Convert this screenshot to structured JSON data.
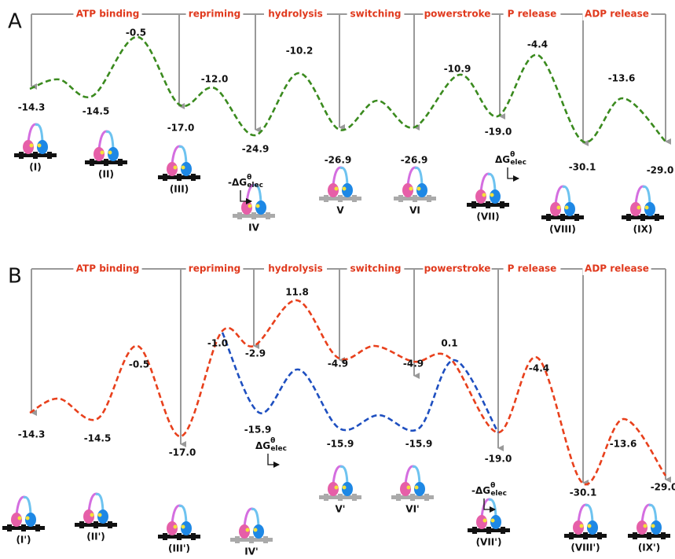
{
  "panels": [
    {
      "label": "A",
      "steps": [
        "ATP binding",
        "repriming",
        "hydrolysis",
        "switching",
        "powerstroke",
        "P release",
        "ADP release"
      ],
      "energies": [
        "-14.3",
        "-0.5",
        "-14.5",
        "-12.0",
        "-17.0",
        "-10.2",
        "-24.9",
        "-26.9",
        "-26.9",
        "-10.9",
        "-19.0",
        "-4.4",
        "-30.1",
        "-13.6",
        "-29.0"
      ],
      "states": [
        "(I)",
        "(II)",
        "(III)",
        "IV",
        "V",
        "VI",
        "(VII)",
        "(VIII)",
        "(IX)"
      ],
      "annotations": [
        {
          "main": "-ΔG",
          "sup": "θ",
          "sub": "elec"
        },
        {
          "main": "ΔG",
          "sup": "θ",
          "sub": "elec"
        }
      ]
    },
    {
      "label": "B",
      "steps": [
        "ATP binding",
        "repriming",
        "hydrolysis",
        "switching",
        "powerstroke",
        "P release",
        "ADP release"
      ],
      "energies": [
        "-14.3",
        "-0.5",
        "-14.5",
        "-17.0",
        "-1.0",
        "-2.9",
        "11.8",
        "-15.9",
        "-4.9",
        "-15.9",
        "-4.9",
        "-15.9",
        "0.1",
        "-19.0",
        "-4.4",
        "-13.6",
        "-30.1",
        "-29.0"
      ],
      "states": [
        "(I')",
        "(II')",
        "(III')",
        "IV'",
        "V'",
        "VI'",
        "(VII')",
        "(VIII')",
        "(IX')"
      ],
      "annotations": [
        {
          "main": "ΔG",
          "sup": "θ",
          "sub": "elec"
        },
        {
          "main": "-ΔG",
          "sup": "θ",
          "sub": "elec"
        }
      ]
    }
  ]
}
